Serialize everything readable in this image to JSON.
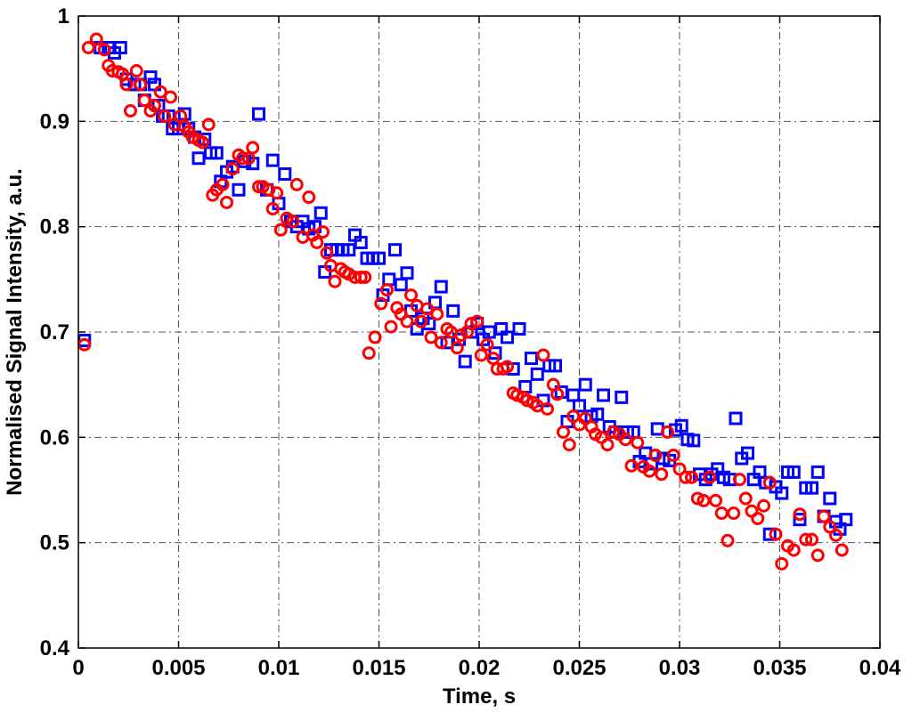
{
  "chart_data": {
    "type": "scatter",
    "xlabel": "Time, s",
    "ylabel": "Normalised Signal Intensity, a.u.",
    "xlim": [
      0,
      0.04
    ],
    "ylim": [
      0.4,
      1
    ],
    "xticks": [
      "0",
      "0.005",
      "0.01",
      "0.015",
      "0.02",
      "0.025",
      "0.03",
      "0.035",
      "0.04"
    ],
    "yticks": [
      "0.4",
      "0.5",
      "0.6",
      "0.7",
      "0.8",
      "0.9",
      "1"
    ],
    "grid": true,
    "series": [
      {
        "marker": "square",
        "color": "#0000ff",
        "points": [
          [
            0.0003,
            0.692
          ],
          [
            0.0011,
            0.97
          ],
          [
            0.0015,
            0.97
          ],
          [
            0.0018,
            0.965
          ],
          [
            0.0021,
            0.97
          ],
          [
            0.0024,
            0.94
          ],
          [
            0.0028,
            0.935
          ],
          [
            0.0031,
            0.935
          ],
          [
            0.0033,
            0.92
          ],
          [
            0.0036,
            0.942
          ],
          [
            0.0038,
            0.935
          ],
          [
            0.004,
            0.915
          ],
          [
            0.0042,
            0.905
          ],
          [
            0.0045,
            0.905
          ],
          [
            0.0047,
            0.893
          ],
          [
            0.005,
            0.893
          ],
          [
            0.0053,
            0.907
          ],
          [
            0.0055,
            0.893
          ],
          [
            0.0058,
            0.885
          ],
          [
            0.006,
            0.865
          ],
          [
            0.0063,
            0.883
          ],
          [
            0.0066,
            0.87
          ],
          [
            0.0069,
            0.87
          ],
          [
            0.0071,
            0.843
          ],
          [
            0.0074,
            0.852
          ],
          [
            0.0077,
            0.857
          ],
          [
            0.008,
            0.835
          ],
          [
            0.0083,
            0.862
          ],
          [
            0.0087,
            0.86
          ],
          [
            0.009,
            0.907
          ],
          [
            0.0094,
            0.835
          ],
          [
            0.0097,
            0.863
          ],
          [
            0.01,
            0.822
          ],
          [
            0.0103,
            0.85
          ],
          [
            0.0106,
            0.805
          ],
          [
            0.0109,
            0.8
          ],
          [
            0.0112,
            0.805
          ],
          [
            0.0115,
            0.798
          ],
          [
            0.0118,
            0.8
          ],
          [
            0.0121,
            0.813
          ],
          [
            0.0123,
            0.757
          ],
          [
            0.0126,
            0.778
          ],
          [
            0.0129,
            0.778
          ],
          [
            0.0132,
            0.778
          ],
          [
            0.0135,
            0.778
          ],
          [
            0.0138,
            0.792
          ],
          [
            0.0141,
            0.785
          ],
          [
            0.0144,
            0.77
          ],
          [
            0.0147,
            0.77
          ],
          [
            0.015,
            0.77
          ],
          [
            0.0152,
            0.735
          ],
          [
            0.0155,
            0.75
          ],
          [
            0.0158,
            0.778
          ],
          [
            0.0161,
            0.745
          ],
          [
            0.0164,
            0.756
          ],
          [
            0.0166,
            0.72
          ],
          [
            0.0169,
            0.703
          ],
          [
            0.0172,
            0.713
          ],
          [
            0.0175,
            0.708
          ],
          [
            0.0178,
            0.728
          ],
          [
            0.0181,
            0.743
          ],
          [
            0.0184,
            0.69
          ],
          [
            0.0187,
            0.72
          ],
          [
            0.019,
            0.693
          ],
          [
            0.0193,
            0.672
          ],
          [
            0.0196,
            0.7
          ],
          [
            0.0199,
            0.708
          ],
          [
            0.0202,
            0.693
          ],
          [
            0.0205,
            0.7
          ],
          [
            0.0208,
            0.68
          ],
          [
            0.0211,
            0.703
          ],
          [
            0.0214,
            0.695
          ],
          [
            0.0217,
            0.665
          ],
          [
            0.022,
            0.703
          ],
          [
            0.0223,
            0.648
          ],
          [
            0.0226,
            0.675
          ],
          [
            0.0229,
            0.66
          ],
          [
            0.0232,
            0.635
          ],
          [
            0.0235,
            0.668
          ],
          [
            0.0238,
            0.668
          ],
          [
            0.0241,
            0.643
          ],
          [
            0.0244,
            0.615
          ],
          [
            0.0247,
            0.64
          ],
          [
            0.025,
            0.63
          ],
          [
            0.0253,
            0.65
          ],
          [
            0.0256,
            0.62
          ],
          [
            0.0259,
            0.622
          ],
          [
            0.0262,
            0.64
          ],
          [
            0.0265,
            0.61
          ],
          [
            0.0268,
            0.605
          ],
          [
            0.0271,
            0.638
          ],
          [
            0.0274,
            0.605
          ],
          [
            0.0277,
            0.605
          ],
          [
            0.028,
            0.577
          ],
          [
            0.0283,
            0.585
          ],
          [
            0.0286,
            0.575
          ],
          [
            0.0289,
            0.608
          ],
          [
            0.0292,
            0.58
          ],
          [
            0.0295,
            0.578
          ],
          [
            0.0298,
            0.607
          ],
          [
            0.0301,
            0.611
          ],
          [
            0.0304,
            0.598
          ],
          [
            0.0307,
            0.597
          ],
          [
            0.031,
            0.565
          ],
          [
            0.0313,
            0.56
          ],
          [
            0.0316,
            0.565
          ],
          [
            0.0319,
            0.57
          ],
          [
            0.0322,
            0.562
          ],
          [
            0.0325,
            0.56
          ],
          [
            0.0328,
            0.618
          ],
          [
            0.0331,
            0.58
          ],
          [
            0.0334,
            0.585
          ],
          [
            0.0337,
            0.56
          ],
          [
            0.034,
            0.567
          ],
          [
            0.0343,
            0.557
          ],
          [
            0.0345,
            0.508
          ],
          [
            0.0348,
            0.553
          ],
          [
            0.0351,
            0.547
          ],
          [
            0.0354,
            0.567
          ],
          [
            0.0357,
            0.567
          ],
          [
            0.036,
            0.522
          ],
          [
            0.0363,
            0.552
          ],
          [
            0.0366,
            0.552
          ],
          [
            0.0369,
            0.567
          ],
          [
            0.0372,
            0.525
          ],
          [
            0.0375,
            0.542
          ],
          [
            0.0378,
            0.52
          ],
          [
            0.038,
            0.513
          ],
          [
            0.0383,
            0.522
          ]
        ]
      },
      {
        "marker": "circle",
        "color": "#ff0000",
        "points": [
          [
            0.0003,
            0.688
          ],
          [
            0.0005,
            0.97
          ],
          [
            0.0009,
            0.978
          ],
          [
            0.0013,
            0.968
          ],
          [
            0.0015,
            0.953
          ],
          [
            0.0017,
            0.948
          ],
          [
            0.002,
            0.947
          ],
          [
            0.0022,
            0.945
          ],
          [
            0.0024,
            0.935
          ],
          [
            0.0026,
            0.91
          ],
          [
            0.0029,
            0.948
          ],
          [
            0.0031,
            0.935
          ],
          [
            0.0033,
            0.92
          ],
          [
            0.0036,
            0.91
          ],
          [
            0.0038,
            0.915
          ],
          [
            0.0041,
            0.928
          ],
          [
            0.0043,
            0.905
          ],
          [
            0.0046,
            0.923
          ],
          [
            0.0048,
            0.897
          ],
          [
            0.0051,
            0.905
          ],
          [
            0.0053,
            0.895
          ],
          [
            0.0055,
            0.89
          ],
          [
            0.0057,
            0.885
          ],
          [
            0.006,
            0.882
          ],
          [
            0.0062,
            0.88
          ],
          [
            0.0065,
            0.897
          ],
          [
            0.0067,
            0.83
          ],
          [
            0.0069,
            0.835
          ],
          [
            0.0072,
            0.84
          ],
          [
            0.0074,
            0.823
          ],
          [
            0.0077,
            0.855
          ],
          [
            0.008,
            0.868
          ],
          [
            0.0082,
            0.865
          ],
          [
            0.0085,
            0.865
          ],
          [
            0.0087,
            0.875
          ],
          [
            0.009,
            0.838
          ],
          [
            0.0092,
            0.838
          ],
          [
            0.0095,
            0.835
          ],
          [
            0.0097,
            0.817
          ],
          [
            0.0099,
            0.832
          ],
          [
            0.0101,
            0.797
          ],
          [
            0.0104,
            0.808
          ],
          [
            0.0107,
            0.805
          ],
          [
            0.0109,
            0.84
          ],
          [
            0.0112,
            0.79
          ],
          [
            0.0115,
            0.828
          ],
          [
            0.0117,
            0.792
          ],
          [
            0.0119,
            0.785
          ],
          [
            0.0122,
            0.795
          ],
          [
            0.0124,
            0.775
          ],
          [
            0.0126,
            0.763
          ],
          [
            0.0128,
            0.748
          ],
          [
            0.0131,
            0.76
          ],
          [
            0.0133,
            0.757
          ],
          [
            0.0135,
            0.755
          ],
          [
            0.0138,
            0.752
          ],
          [
            0.0141,
            0.752
          ],
          [
            0.0143,
            0.752
          ],
          [
            0.0145,
            0.68
          ],
          [
            0.0148,
            0.695
          ],
          [
            0.0151,
            0.727
          ],
          [
            0.0154,
            0.74
          ],
          [
            0.0156,
            0.705
          ],
          [
            0.0159,
            0.723
          ],
          [
            0.0161,
            0.717
          ],
          [
            0.0164,
            0.71
          ],
          [
            0.0166,
            0.735
          ],
          [
            0.0169,
            0.725
          ],
          [
            0.0171,
            0.71
          ],
          [
            0.0174,
            0.722
          ],
          [
            0.0176,
            0.695
          ],
          [
            0.0179,
            0.717
          ],
          [
            0.0181,
            0.69
          ],
          [
            0.0184,
            0.703
          ],
          [
            0.0186,
            0.7
          ],
          [
            0.0189,
            0.685
          ],
          [
            0.0191,
            0.697
          ],
          [
            0.0194,
            0.7
          ],
          [
            0.0196,
            0.708
          ],
          [
            0.0199,
            0.71
          ],
          [
            0.0201,
            0.678
          ],
          [
            0.0204,
            0.688
          ],
          [
            0.0207,
            0.675
          ],
          [
            0.0209,
            0.665
          ],
          [
            0.0212,
            0.665
          ],
          [
            0.0214,
            0.667
          ],
          [
            0.0217,
            0.642
          ],
          [
            0.0219,
            0.64
          ],
          [
            0.0222,
            0.638
          ],
          [
            0.0224,
            0.635
          ],
          [
            0.0227,
            0.633
          ],
          [
            0.0229,
            0.63
          ],
          [
            0.0232,
            0.678
          ],
          [
            0.0234,
            0.627
          ],
          [
            0.0237,
            0.65
          ],
          [
            0.0239,
            0.641
          ],
          [
            0.0242,
            0.605
          ],
          [
            0.0245,
            0.593
          ],
          [
            0.0247,
            0.62
          ],
          [
            0.025,
            0.612
          ],
          [
            0.0253,
            0.618
          ],
          [
            0.0256,
            0.61
          ],
          [
            0.0258,
            0.603
          ],
          [
            0.0261,
            0.6
          ],
          [
            0.0264,
            0.593
          ],
          [
            0.0267,
            0.605
          ],
          [
            0.027,
            0.603
          ],
          [
            0.0273,
            0.598
          ],
          [
            0.0276,
            0.573
          ],
          [
            0.0279,
            0.595
          ],
          [
            0.0282,
            0.572
          ],
          [
            0.0285,
            0.568
          ],
          [
            0.0288,
            0.583
          ],
          [
            0.0291,
            0.565
          ],
          [
            0.0294,
            0.605
          ],
          [
            0.0297,
            0.583
          ],
          [
            0.03,
            0.57
          ],
          [
            0.0303,
            0.562
          ],
          [
            0.0306,
            0.562
          ],
          [
            0.0309,
            0.542
          ],
          [
            0.0312,
            0.54
          ],
          [
            0.0315,
            0.562
          ],
          [
            0.0318,
            0.54
          ],
          [
            0.0321,
            0.528
          ],
          [
            0.0324,
            0.502
          ],
          [
            0.0327,
            0.528
          ],
          [
            0.033,
            0.56
          ],
          [
            0.0333,
            0.542
          ],
          [
            0.0336,
            0.53
          ],
          [
            0.0339,
            0.523
          ],
          [
            0.0342,
            0.535
          ],
          [
            0.0345,
            0.557
          ],
          [
            0.0348,
            0.508
          ],
          [
            0.0351,
            0.48
          ],
          [
            0.0354,
            0.497
          ],
          [
            0.0357,
            0.493
          ],
          [
            0.036,
            0.527
          ],
          [
            0.0363,
            0.503
          ],
          [
            0.0366,
            0.503
          ],
          [
            0.0369,
            0.488
          ],
          [
            0.0372,
            0.525
          ],
          [
            0.0375,
            0.515
          ],
          [
            0.0378,
            0.507
          ],
          [
            0.0381,
            0.493
          ]
        ]
      }
    ]
  }
}
